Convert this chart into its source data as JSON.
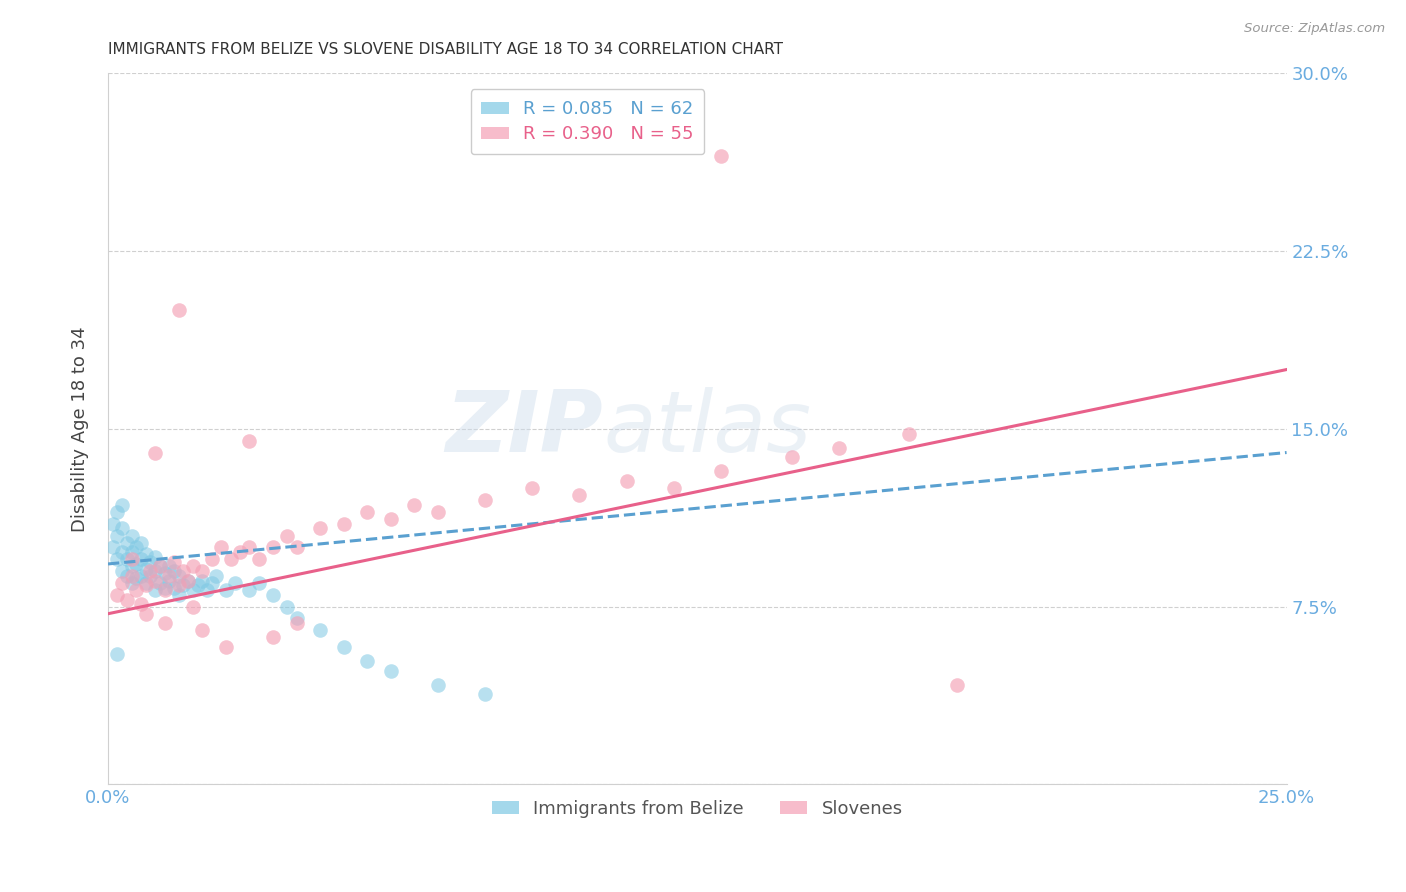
{
  "title": "IMMIGRANTS FROM BELIZE VS SLOVENE DISABILITY AGE 18 TO 34 CORRELATION CHART",
  "source": "Source: ZipAtlas.com",
  "ylabel": "Disability Age 18 to 34",
  "xlim": [
    0.0,
    0.25
  ],
  "ylim": [
    0.0,
    0.3
  ],
  "xticks": [
    0.0,
    0.05,
    0.1,
    0.15,
    0.2,
    0.25
  ],
  "yticks": [
    0.0,
    0.075,
    0.15,
    0.225,
    0.3
  ],
  "xtick_labels": [
    "0.0%",
    "",
    "",
    "",
    "",
    "25.0%"
  ],
  "ytick_labels": [
    "",
    "7.5%",
    "15.0%",
    "22.5%",
    "30.0%"
  ],
  "legend_R_belize": "R = 0.085",
  "legend_N_belize": "N = 62",
  "legend_R_slovene": "R = 0.390",
  "legend_N_slovene": "N = 55",
  "color_belize": "#7ec8e3",
  "color_slovene": "#f4a0b5",
  "color_belize_line": "#5aa0d0",
  "color_slovene_line": "#e8608a",
  "color_axis_labels": "#6aace0",
  "watermark_1": "ZIP",
  "watermark_2": "atlas",
  "belize_x": [
    0.001,
    0.001,
    0.002,
    0.002,
    0.002,
    0.003,
    0.003,
    0.003,
    0.003,
    0.004,
    0.004,
    0.004,
    0.005,
    0.005,
    0.005,
    0.005,
    0.006,
    0.006,
    0.006,
    0.007,
    0.007,
    0.007,
    0.008,
    0.008,
    0.008,
    0.009,
    0.009,
    0.01,
    0.01,
    0.01,
    0.011,
    0.011,
    0.012,
    0.012,
    0.013,
    0.013,
    0.014,
    0.014,
    0.015,
    0.015,
    0.016,
    0.017,
    0.018,
    0.019,
    0.02,
    0.021,
    0.022,
    0.023,
    0.025,
    0.027,
    0.03,
    0.032,
    0.035,
    0.038,
    0.04,
    0.045,
    0.05,
    0.055,
    0.06,
    0.07,
    0.08,
    0.002
  ],
  "belize_y": [
    0.1,
    0.11,
    0.095,
    0.105,
    0.115,
    0.09,
    0.098,
    0.108,
    0.118,
    0.088,
    0.095,
    0.102,
    0.085,
    0.092,
    0.098,
    0.105,
    0.087,
    0.093,
    0.1,
    0.088,
    0.095,
    0.102,
    0.085,
    0.091,
    0.097,
    0.088,
    0.094,
    0.082,
    0.09,
    0.096,
    0.085,
    0.092,
    0.083,
    0.089,
    0.086,
    0.092,
    0.083,
    0.09,
    0.08,
    0.088,
    0.084,
    0.086,
    0.082,
    0.084,
    0.086,
    0.082,
    0.085,
    0.088,
    0.082,
    0.085,
    0.082,
    0.085,
    0.08,
    0.075,
    0.07,
    0.065,
    0.058,
    0.052,
    0.048,
    0.042,
    0.038,
    0.055
  ],
  "slovene_x": [
    0.002,
    0.003,
    0.004,
    0.005,
    0.006,
    0.007,
    0.008,
    0.009,
    0.01,
    0.011,
    0.012,
    0.013,
    0.014,
    0.015,
    0.016,
    0.017,
    0.018,
    0.02,
    0.022,
    0.024,
    0.026,
    0.028,
    0.03,
    0.032,
    0.035,
    0.038,
    0.04,
    0.045,
    0.05,
    0.055,
    0.06,
    0.065,
    0.07,
    0.08,
    0.09,
    0.1,
    0.11,
    0.12,
    0.13,
    0.145,
    0.155,
    0.17,
    0.005,
    0.008,
    0.01,
    0.012,
    0.015,
    0.018,
    0.02,
    0.025,
    0.03,
    0.035,
    0.04,
    0.18,
    0.13
  ],
  "slovene_y": [
    0.08,
    0.085,
    0.078,
    0.088,
    0.082,
    0.076,
    0.084,
    0.09,
    0.086,
    0.092,
    0.082,
    0.088,
    0.094,
    0.084,
    0.09,
    0.086,
    0.092,
    0.09,
    0.095,
    0.1,
    0.095,
    0.098,
    0.1,
    0.095,
    0.1,
    0.105,
    0.1,
    0.108,
    0.11,
    0.115,
    0.112,
    0.118,
    0.115,
    0.12,
    0.125,
    0.122,
    0.128,
    0.125,
    0.132,
    0.138,
    0.142,
    0.148,
    0.095,
    0.072,
    0.14,
    0.068,
    0.2,
    0.075,
    0.065,
    0.058,
    0.145,
    0.062,
    0.068,
    0.042,
    0.265
  ],
  "belize_line_x0": 0.0,
  "belize_line_x1": 0.25,
  "belize_line_y0": 0.093,
  "belize_line_y1": 0.14,
  "slovene_line_x0": 0.0,
  "slovene_line_x1": 0.25,
  "slovene_line_y0": 0.072,
  "slovene_line_y1": 0.175
}
